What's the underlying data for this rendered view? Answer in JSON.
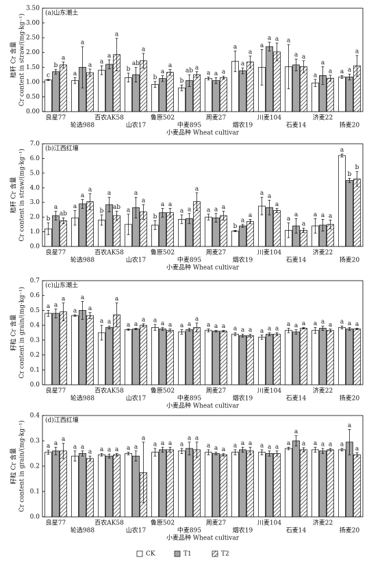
{
  "chart_data": [
    {
      "type": "bar",
      "title": "(a)山东潮土",
      "ylabel": [
        "秸秆 Cr 含量",
        "Cr content in straw/(mg·kg⁻¹)"
      ],
      "xlabel": "小麦品种 Wheat cultivar",
      "categories": [
        "良星77",
        "轮选988",
        "百农AK58",
        "山农17",
        "鲁原502",
        "中麦895",
        "周麦27",
        "烟农19",
        "川麦104",
        "石麦14",
        "济麦22",
        "扬麦20"
      ],
      "ylim": [
        0,
        3.5
      ],
      "yticks": [
        {
          "value": 0,
          "label": "0.00"
        },
        {
          "value": 0.5,
          "label": "0.50"
        },
        {
          "value": 1,
          "label": "1.00"
        },
        {
          "value": 1.5,
          "label": "1.50"
        },
        {
          "value": 2,
          "label": "2.00"
        },
        {
          "value": 2.5,
          "label": "2.50"
        },
        {
          "value": 3,
          "label": "3.00"
        },
        {
          "value": 3.5,
          "label": "3.50"
        }
      ],
      "series": [
        {
          "name": "CK",
          "color": "#ffffff",
          "hatch": false,
          "values": [
            1.07,
            1.05,
            1.4,
            1.15,
            0.92,
            0.8,
            1.12,
            1.7,
            1.5,
            1.52,
            0.97,
            1.17
          ],
          "errors": [
            0.02,
            0.1,
            0.15,
            0.15,
            0.1,
            0.1,
            0.05,
            0.35,
            0.6,
            0.75,
            0.12,
            0.05
          ],
          "letters": [
            "c",
            "a",
            "a",
            "b",
            "b",
            "b",
            "a",
            "a",
            "a",
            "a",
            "a",
            "a"
          ]
        },
        {
          "name": "T1",
          "color": "#a6a6a6",
          "hatch": false,
          "values": [
            1.35,
            1.5,
            1.6,
            1.25,
            1.12,
            1.05,
            1.05,
            1.38,
            2.2,
            1.58,
            1.22,
            1.17
          ],
          "errors": [
            0.08,
            0.7,
            0.15,
            0.25,
            0.1,
            0.2,
            0.1,
            0.1,
            0.15,
            0.2,
            0.3,
            0.1
          ],
          "letters": [
            "b",
            "a",
            "a",
            "ab",
            "a",
            "ab",
            "a",
            "a",
            "a",
            "a",
            "a",
            "a"
          ]
        },
        {
          "name": "T2",
          "color": "#ffffff",
          "hatch": true,
          "values": [
            1.58,
            1.32,
            1.93,
            1.72,
            1.33,
            1.25,
            1.15,
            1.68,
            2.02,
            1.52,
            1.13,
            1.55
          ],
          "errors": [
            0.1,
            0.12,
            0.55,
            0.25,
            0.1,
            0.1,
            0.05,
            0.2,
            0.3,
            0.2,
            0.1,
            0.35
          ],
          "letters": [
            "a",
            "a",
            "a",
            "a",
            "a",
            "a",
            "a",
            "a",
            "a",
            "a",
            "a",
            "a"
          ]
        }
      ]
    },
    {
      "type": "bar",
      "title": "(b)江西红壤",
      "ylabel": [
        "秸秆 Cr 含量",
        "Cr content in straw/(mg·kg⁻¹)"
      ],
      "xlabel": "小麦品种 Wheat cultivar",
      "categories": [
        "良星77",
        "轮选988",
        "百农AK58",
        "山农17",
        "鲁原502",
        "中麦895",
        "周麦27",
        "烟农19",
        "川麦104",
        "石麦14",
        "济麦22",
        "扬麦20"
      ],
      "ylim": [
        0,
        7
      ],
      "yticks": [
        {
          "value": 0,
          "label": "0.0"
        },
        {
          "value": 1,
          "label": "1.0"
        },
        {
          "value": 2,
          "label": "2.0"
        },
        {
          "value": 3,
          "label": "3.0"
        },
        {
          "value": 4,
          "label": "4.0"
        },
        {
          "value": 5,
          "label": "5.0"
        },
        {
          "value": 6,
          "label": "6.0"
        },
        {
          "value": 7,
          "label": "7.0"
        }
      ],
      "series": [
        {
          "name": "CK",
          "color": "#ffffff",
          "hatch": false,
          "values": [
            1.2,
            1.95,
            1.8,
            1.5,
            1.45,
            1.85,
            2.0,
            1.05,
            2.75,
            1.1,
            1.4,
            6.2
          ],
          "errors": [
            0.4,
            0.5,
            0.35,
            0.7,
            0.3,
            0.3,
            0.2,
            0.05,
            0.6,
            0.5,
            0.5,
            0.1
          ],
          "letters": [
            "b",
            "a",
            "b",
            "a",
            "b",
            "a",
            "a",
            "b",
            "a",
            "a",
            "a",
            "a"
          ]
        },
        {
          "name": "T1",
          "color": "#a6a6a6",
          "hatch": false,
          "values": [
            2.1,
            2.9,
            2.85,
            2.65,
            2.3,
            1.9,
            1.95,
            1.4,
            2.65,
            1.4,
            1.45,
            4.5
          ],
          "errors": [
            0.3,
            0.3,
            0.5,
            0.7,
            0.3,
            0.35,
            0.3,
            0.1,
            0.5,
            0.5,
            0.4,
            0.15
          ],
          "letters": [
            "a",
            "a",
            "a",
            "a",
            "a",
            "a",
            "a",
            "a",
            "a",
            "a",
            "a",
            "b"
          ]
        },
        {
          "name": "T2",
          "color": "#ffffff",
          "hatch": true,
          "values": [
            1.75,
            3.05,
            2.1,
            2.35,
            2.3,
            3.05,
            2.1,
            1.7,
            2.45,
            1.1,
            1.5,
            4.6
          ],
          "errors": [
            0.2,
            0.55,
            0.3,
            0.5,
            0.3,
            0.6,
            0.3,
            0.15,
            0.15,
            0.15,
            0.3,
            0.5
          ],
          "letters": [
            "ab",
            "a",
            "ab",
            "a",
            "a",
            "a",
            "a",
            "a",
            "a",
            "a",
            "a",
            "b"
          ]
        }
      ]
    },
    {
      "type": "bar",
      "title": "(c)山东潮土",
      "ylabel": [
        "籽粒 Cr 含量",
        "Cr content in grain/(mg·kg⁻¹)"
      ],
      "xlabel": "小麦品种 Wheat cultivar",
      "categories": [
        "良星77",
        "轮选988",
        "百农AK58",
        "山农17",
        "鲁原502",
        "中麦895",
        "周麦27",
        "烟农19",
        "川麦104",
        "石麦14",
        "济麦22",
        "扬麦20"
      ],
      "ylim": [
        0,
        0.7
      ],
      "yticks": [
        {
          "value": 0,
          "label": "0.0"
        },
        0.1,
        0.2,
        0.3,
        0.4,
        0.5,
        0.6,
        0.7
      ],
      "series": [
        {
          "name": "CK",
          "color": "#ffffff",
          "hatch": false,
          "values": [
            0.48,
            0.465,
            0.35,
            0.37,
            0.385,
            0.355,
            0.365,
            0.34,
            0.32,
            0.365,
            0.365,
            0.385
          ],
          "errors": [
            0.02,
            0.005,
            0.05,
            0.005,
            0.02,
            0.015,
            0.01,
            0.01,
            0.015,
            0.015,
            0.02,
            0.01
          ],
          "letters": [
            "a",
            "a",
            "a",
            "a",
            "a",
            "a",
            "a",
            "a",
            "a",
            "a",
            "a",
            "a"
          ]
        },
        {
          "name": "T1",
          "color": "#a6a6a6",
          "hatch": false,
          "values": [
            0.48,
            0.5,
            0.385,
            0.375,
            0.375,
            0.37,
            0.36,
            0.33,
            0.34,
            0.355,
            0.38,
            0.375
          ],
          "errors": [
            0.03,
            0.06,
            0.01,
            0.005,
            0.01,
            0.01,
            0.005,
            0.01,
            0.01,
            0.015,
            0.015,
            0.01
          ],
          "letters": [
            "a",
            "a",
            "a",
            "a",
            "a",
            "a",
            "a",
            "a",
            "a",
            "a",
            "a",
            "a"
          ]
        },
        {
          "name": "T2",
          "color": "#ffffff",
          "hatch": true,
          "values": [
            0.49,
            0.465,
            0.47,
            0.4,
            0.365,
            0.385,
            0.36,
            0.33,
            0.34,
            0.38,
            0.365,
            0.375
          ],
          "errors": [
            0.06,
            0.02,
            0.08,
            0.01,
            0.01,
            0.03,
            0.005,
            0.01,
            0.01,
            0.005,
            0.01,
            0.005
          ],
          "letters": [
            "a",
            "a",
            "a",
            "a",
            "a",
            "a",
            "a",
            "a",
            "a",
            "a",
            "a",
            "a"
          ]
        }
      ]
    },
    {
      "type": "bar",
      "title": "(d)江西红壤",
      "ylabel": [
        "籽粒 Cr 含量",
        "Cr content in grain/(mg·kg⁻¹)"
      ],
      "xlabel": "小麦品种 Wheat cultivar",
      "categories": [
        "良星77",
        "轮选988",
        "百农AK58",
        "山农17",
        "鲁原502",
        "中麦895",
        "周麦27",
        "烟农19",
        "川麦104",
        "石麦14",
        "济麦22",
        "扬麦20"
      ],
      "ylim": [
        0,
        0.4
      ],
      "yticks": [
        {
          "value": 0,
          "label": "0.0"
        },
        0.1,
        0.2,
        0.3,
        0.4
      ],
      "series": [
        {
          "name": "CK",
          "color": "#ffffff",
          "hatch": false,
          "values": [
            0.255,
            0.24,
            0.245,
            0.25,
            0.255,
            0.26,
            0.255,
            0.255,
            0.255,
            0.27,
            0.265,
            0.265
          ],
          "errors": [
            0.008,
            0.02,
            0.005,
            0.005,
            0.015,
            0.01,
            0.01,
            0.01,
            0.01,
            0.005,
            0.01,
            0.005
          ],
          "letters": [
            "a",
            "a",
            "a",
            "a",
            "a",
            "a",
            "a",
            "a",
            "a",
            "a",
            "a",
            "a"
          ]
        },
        {
          "name": "T1",
          "color": "#a6a6a6",
          "hatch": false,
          "values": [
            0.26,
            0.25,
            0.24,
            0.24,
            0.265,
            0.27,
            0.25,
            0.265,
            0.25,
            0.3,
            0.26,
            0.295
          ],
          "errors": [
            0.015,
            0.01,
            0.008,
            0.02,
            0.01,
            0.025,
            0.005,
            0.01,
            0.01,
            0.02,
            0.01,
            0.05
          ],
          "letters": [
            "a",
            "a",
            "a",
            "a",
            "a",
            "a",
            "a",
            "a",
            "a",
            "a",
            "a",
            "a"
          ]
        },
        {
          "name": "T2",
          "color": "#ffffff",
          "hatch": true,
          "values": [
            0.26,
            0.23,
            0.245,
            0.175,
            0.265,
            0.265,
            0.245,
            0.26,
            0.25,
            0.265,
            0.265,
            0.245
          ],
          "errors": [
            0.03,
            0.01,
            0.005,
            0.12,
            0.01,
            0.03,
            0.005,
            0.015,
            0.01,
            0.008,
            0.005,
            0.008
          ],
          "letters": [
            "a",
            "a",
            "a",
            "a",
            "a",
            "a",
            "a",
            "a",
            "a",
            "a",
            "a",
            "a"
          ]
        }
      ]
    }
  ]
}
